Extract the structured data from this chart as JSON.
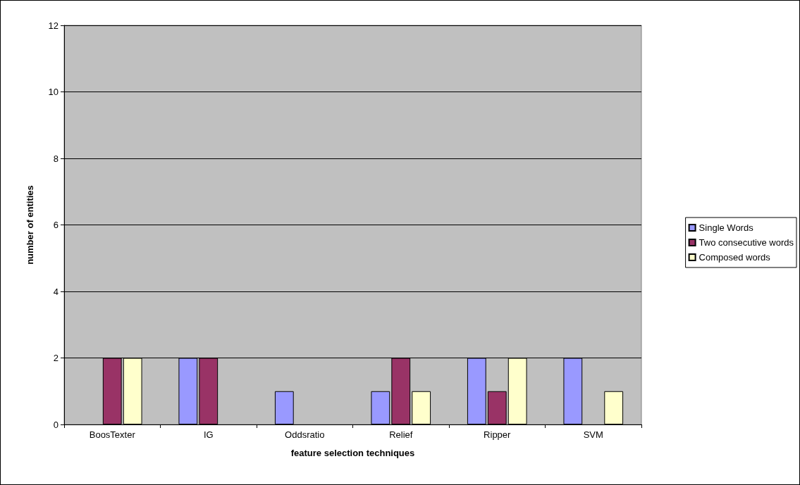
{
  "chart_data": {
    "type": "bar",
    "xlabel": "feature selection techniques",
    "ylabel": "number of entities",
    "categories": [
      "BoosTexter",
      "IG",
      "Oddsratio",
      "Relief",
      "Ripper",
      "SVM"
    ],
    "series": [
      {
        "name": "Single Words",
        "color": "#9999ff",
        "values": [
          0,
          2,
          1,
          1,
          2,
          2
        ]
      },
      {
        "name": "Two consecutive words",
        "color": "#993366",
        "values": [
          2,
          2,
          0,
          2,
          1,
          0
        ]
      },
      {
        "name": "Composed words",
        "color": "#ffffcc",
        "values": [
          2,
          0,
          0,
          1,
          2,
          1
        ]
      }
    ],
    "ylim": [
      0,
      12
    ],
    "yticks": [
      0,
      2,
      4,
      6,
      8,
      10,
      12
    ],
    "grid": "y",
    "legend": "right"
  }
}
